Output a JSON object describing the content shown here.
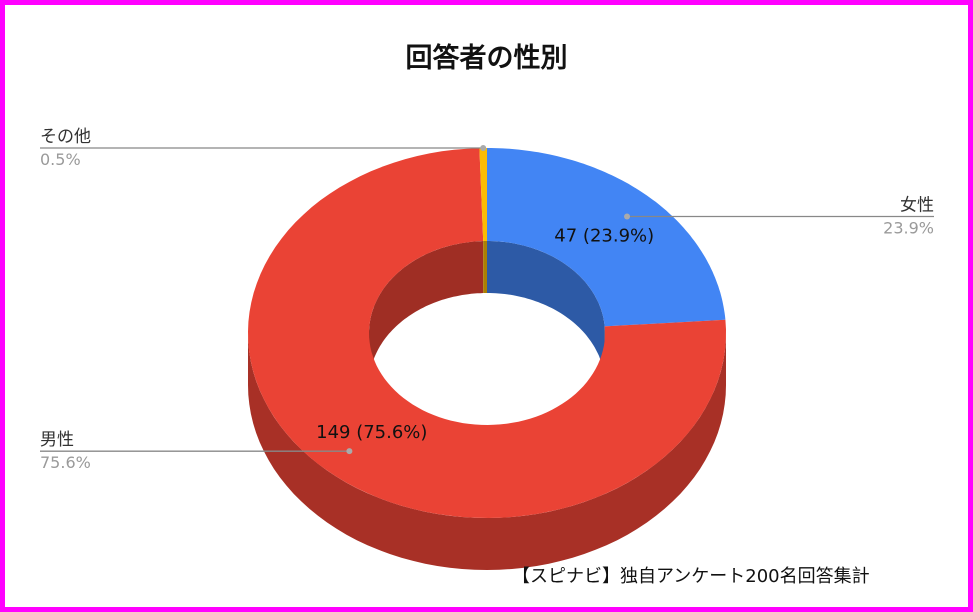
{
  "colors": {
    "frame": "#ff00ff",
    "男性": "#ea4335",
    "女性": "#4285f4",
    "その他": "#fbbc04",
    "leader_line": "#888888"
  },
  "chart_data": {
    "type": "pie",
    "style": "3d-donut",
    "title": "回答者の性別",
    "source": "【スピナビ】独自アンケート200名回答集計",
    "slices": [
      {
        "label": "女性",
        "value": 47,
        "percent": "23.9%",
        "data_label": "47 (23.9%)"
      },
      {
        "label": "男性",
        "value": 149,
        "percent": "75.6%",
        "data_label": "149 (75.6%)"
      },
      {
        "label": "その他",
        "value": 1,
        "percent": "0.5%"
      }
    ],
    "legend": "none"
  }
}
